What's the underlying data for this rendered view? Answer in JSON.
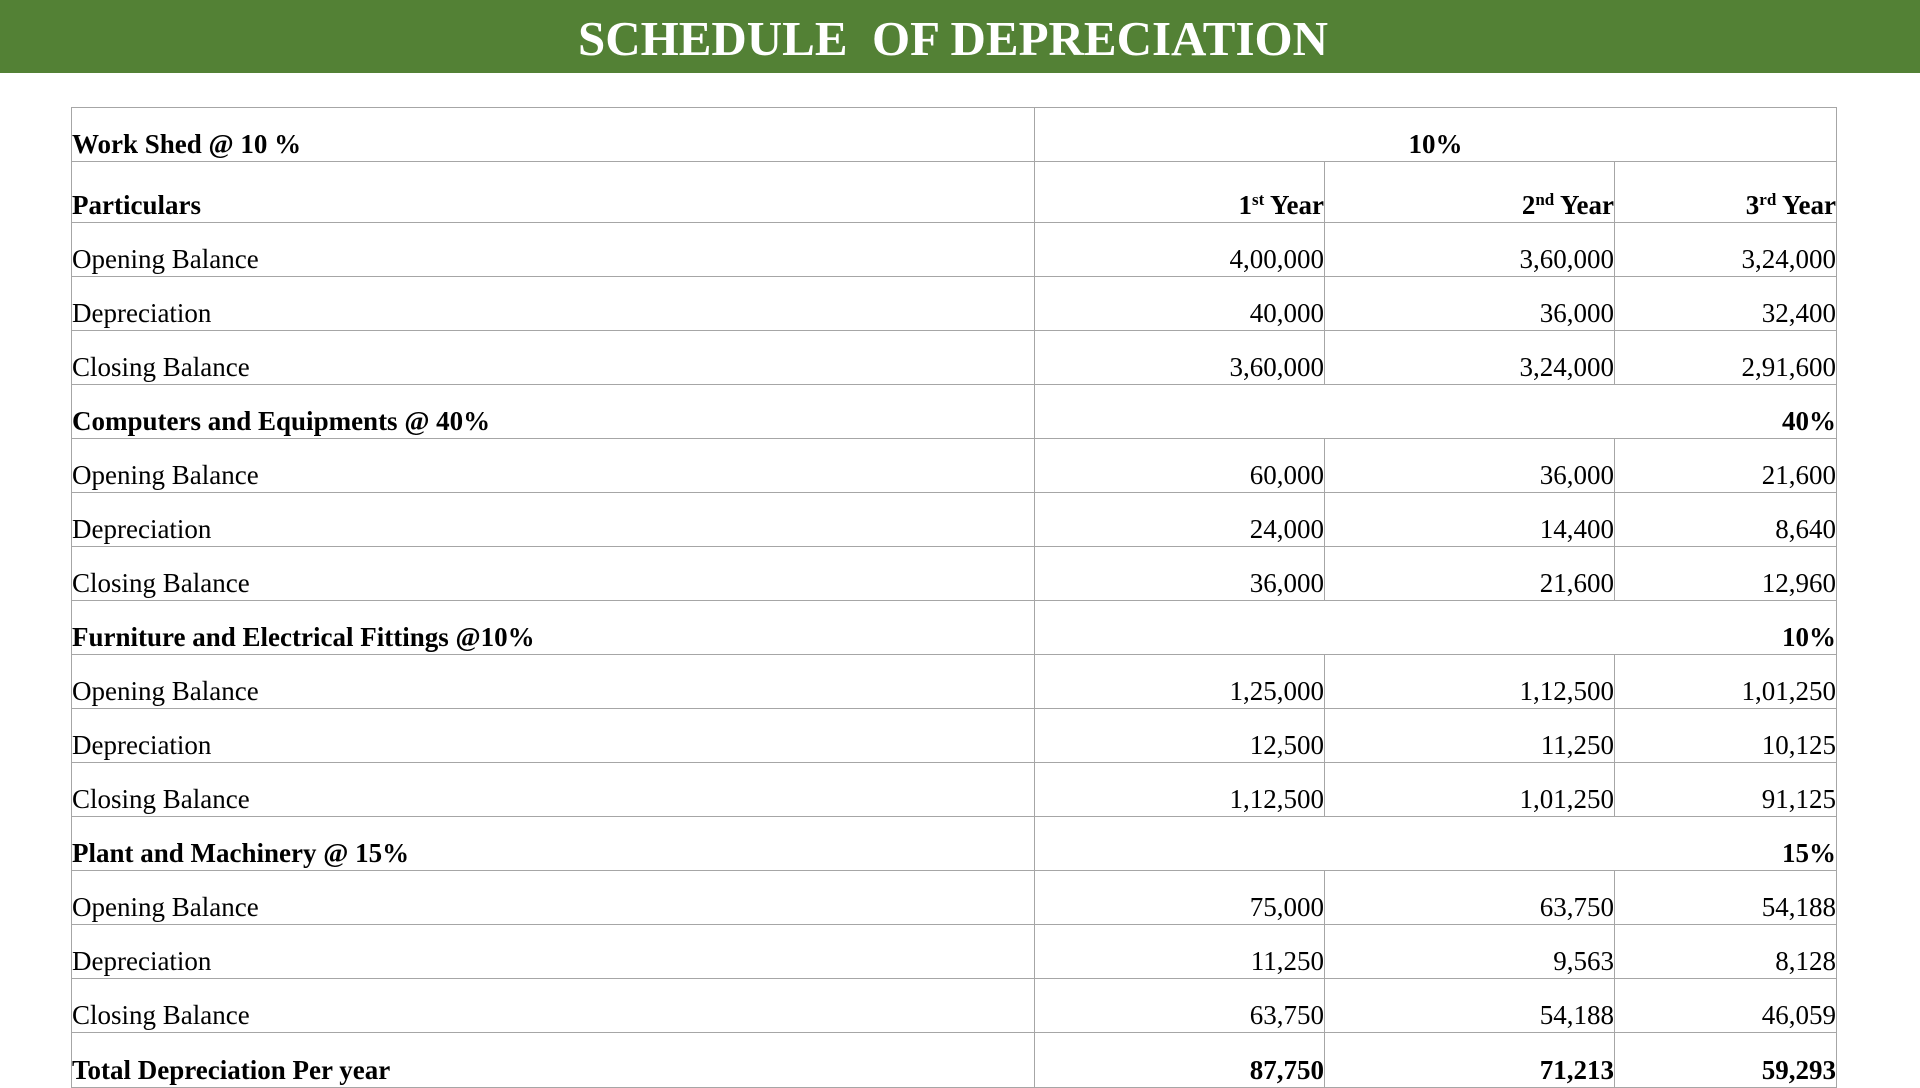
{
  "title": "SCHEDULE  OF DEPRECIATION",
  "work_shed": {
    "label": "Work Shed @ 10 %",
    "rate": "10%"
  },
  "header": {
    "particulars": "Particulars",
    "years": [
      {
        "num": "1",
        "suffix": "st",
        "word": "Year"
      },
      {
        "num": "2",
        "suffix": "nd",
        "word": "Year"
      },
      {
        "num": "3",
        "suffix": "rd",
        "word": "Year"
      }
    ]
  },
  "sections": [
    {
      "rows": [
        {
          "label": "Opening Balance",
          "values": [
            "4,00,000",
            "3,60,000",
            "3,24,000"
          ]
        },
        {
          "label": "Depreciation",
          "values": [
            "40,000",
            "36,000",
            "32,400"
          ]
        },
        {
          "label": "Closing Balance",
          "values": [
            "3,60,000",
            "3,24,000",
            "2,91,600"
          ]
        }
      ]
    },
    {
      "label": "Computers and Equipments @ 40%",
      "rate": "40%",
      "rows": [
        {
          "label": "Opening Balance",
          "values": [
            "60,000",
            "36,000",
            "21,600"
          ]
        },
        {
          "label": "Depreciation",
          "values": [
            "24,000",
            "14,400",
            "8,640"
          ]
        },
        {
          "label": "Closing Balance",
          "values": [
            "36,000",
            "21,600",
            "12,960"
          ]
        }
      ]
    },
    {
      "label": "Furniture and Electrical Fittings @10%",
      "rate": "10%",
      "rows": [
        {
          "label": "Opening Balance",
          "values": [
            "1,25,000",
            "1,12,500",
            "1,01,250"
          ]
        },
        {
          "label": "Depreciation",
          "values": [
            "12,500",
            "11,250",
            "10,125"
          ]
        },
        {
          "label": "Closing Balance",
          "values": [
            "1,12,500",
            "1,01,250",
            "91,125"
          ]
        }
      ]
    },
    {
      "label": "Plant and Machinery @ 15%",
      "rate": "15%",
      "rows": [
        {
          "label": "Opening Balance",
          "values": [
            "75,000",
            "63,750",
            "54,188"
          ]
        },
        {
          "label": "Depreciation",
          "values": [
            "11,250",
            "9,563",
            "8,128"
          ]
        },
        {
          "label": "Closing Balance",
          "values": [
            "63,750",
            "54,188",
            "46,059"
          ]
        }
      ]
    }
  ],
  "total": {
    "label": "Total Depreciation Per year",
    "values": [
      "87,750",
      "71,213",
      "59,293"
    ]
  },
  "colors": {
    "title_bar": "#538135",
    "title_text": "#ffffff",
    "grid": "#a6a6a6"
  }
}
